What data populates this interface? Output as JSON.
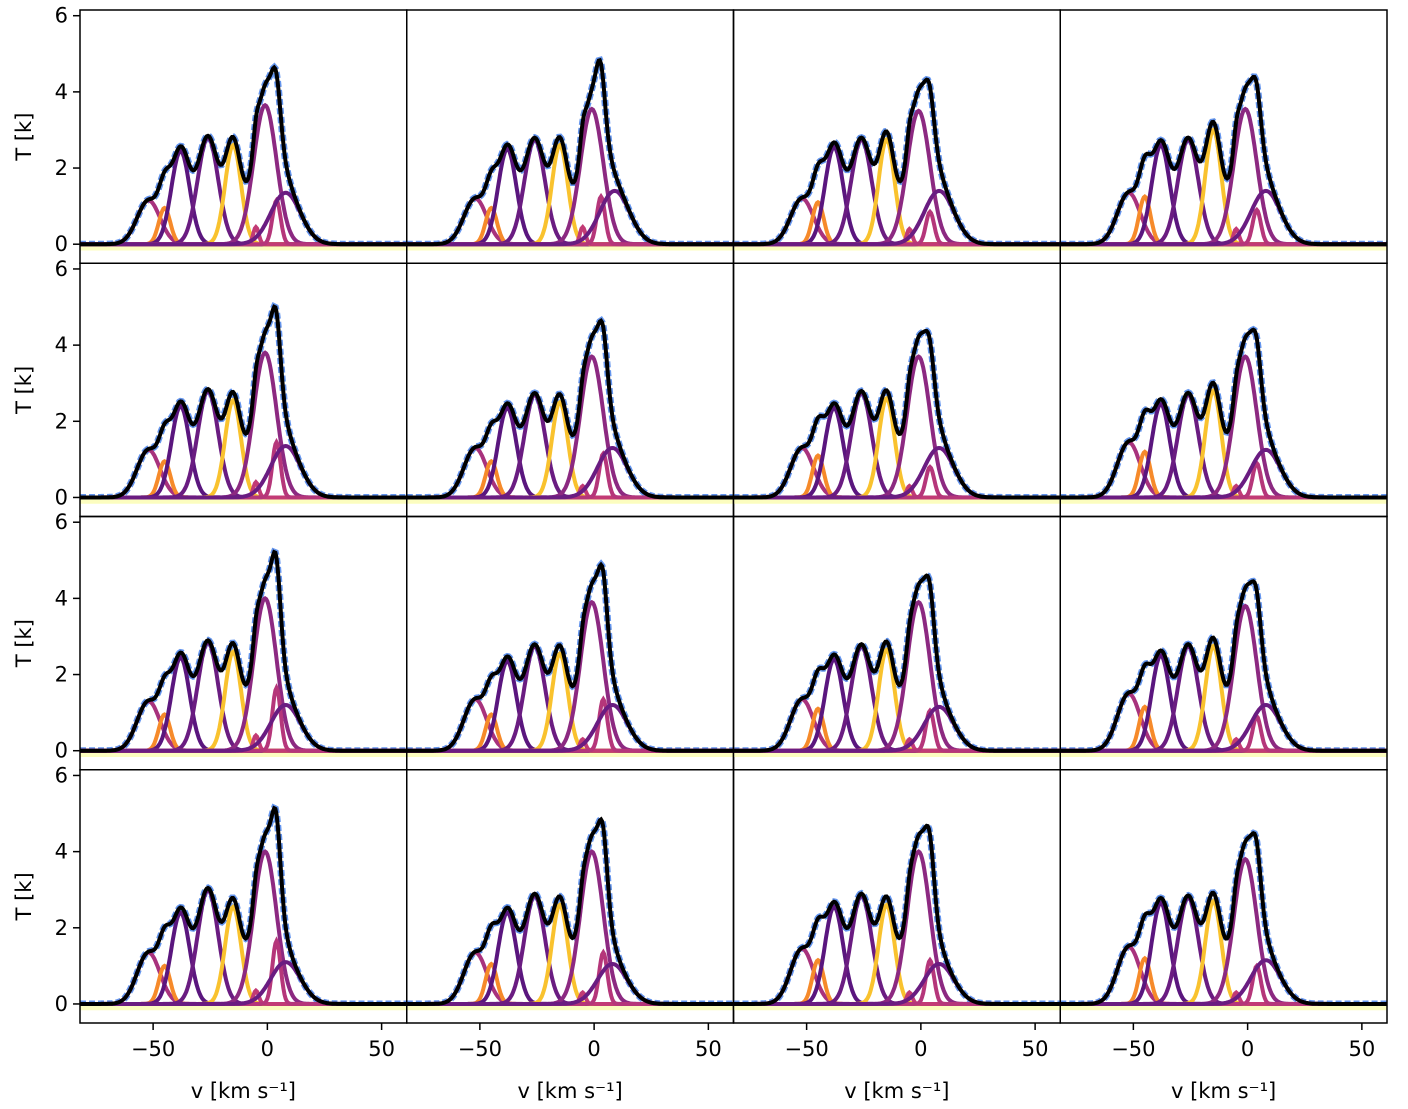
{
  "chart_data": [
    {
      "type": "gaussian-fit",
      "ylim": [
        -0.5,
        6.15
      ],
      "xlim": [
        -82,
        61
      ],
      "yticks": [
        0,
        2,
        4,
        6
      ],
      "y_label": "T [k]",
      "baseline": -0.1,
      "colors": [
        "#a8327d",
        "#f68a2a",
        "#5a167e",
        "#6a1c81",
        "#f9c22e",
        "#c23b75",
        "#8c2981",
        "#b5367a",
        "#6a1c81"
      ],
      "centers": [
        -52,
        -45,
        -38,
        -26,
        -15,
        -5,
        -1,
        4,
        8
      ],
      "widths": [
        5,
        2.5,
        4,
        4.5,
        3.5,
        1.2,
        5,
        1.8,
        6.5
      ],
      "amps": [
        1.15,
        0.95,
        2.45,
        2.8,
        2.6,
        0.45,
        3.65,
        1.15,
        1.35
      ]
    },
    {
      "type": "gaussian-fit",
      "ylim": [
        -0.5,
        6.15
      ],
      "xlim": [
        -82,
        61
      ],
      "baseline": -0.1,
      "colors": [
        "#a8327d",
        "#f68a2a",
        "#5a167e",
        "#6a1c81",
        "#f9c22e",
        "#c23b75",
        "#8c2981",
        "#b5367a",
        "#6a1c81"
      ],
      "centers": [
        -52,
        -45,
        -38,
        -26,
        -15,
        -5,
        -1,
        3,
        9
      ],
      "widths": [
        5,
        2.5,
        4,
        4.5,
        3.5,
        1.2,
        5,
        1.8,
        6.5
      ],
      "amps": [
        1.2,
        0.95,
        2.5,
        2.75,
        2.6,
        0.45,
        3.55,
        1.25,
        1.4
      ]
    },
    {
      "type": "gaussian-fit",
      "ylim": [
        -0.5,
        6.15
      ],
      "xlim": [
        -82,
        61
      ],
      "baseline": -0.1,
      "colors": [
        "#a8327d",
        "#f68a2a",
        "#5a167e",
        "#6a1c81",
        "#f9c22e",
        "#c23b75",
        "#8c2981",
        "#b5367a",
        "#6a1c81"
      ],
      "centers": [
        -52,
        -45,
        -38,
        -26,
        -15,
        -5,
        -1,
        4,
        8
      ],
      "widths": [
        5,
        2.5,
        4,
        4.5,
        3.5,
        1.2,
        5,
        1.8,
        6.5
      ],
      "amps": [
        1.2,
        1.1,
        2.55,
        2.75,
        2.75,
        0.4,
        3.5,
        0.85,
        1.4
      ]
    },
    {
      "type": "gaussian-fit",
      "ylim": [
        -0.5,
        6.15
      ],
      "xlim": [
        -82,
        61
      ],
      "baseline": -0.1,
      "colors": [
        "#a8327d",
        "#f68a2a",
        "#5a167e",
        "#6a1c81",
        "#f9c22e",
        "#c23b75",
        "#8c2981",
        "#b5367a",
        "#6a1c81"
      ],
      "centers": [
        -52,
        -45,
        -38,
        -26,
        -15,
        -5,
        -1,
        4,
        8
      ],
      "widths": [
        5,
        2.5,
        4,
        4.5,
        3.5,
        1.2,
        5,
        1.8,
        6.5
      ],
      "amps": [
        1.35,
        1.25,
        2.6,
        2.75,
        3.0,
        0.4,
        3.55,
        0.9,
        1.4
      ]
    },
    {
      "type": "gaussian-fit",
      "ylim": [
        -0.5,
        6.15
      ],
      "xlim": [
        -82,
        61
      ],
      "yticks": [
        0,
        2,
        4,
        6
      ],
      "y_label": "T [k]",
      "baseline": -0.1,
      "colors": [
        "#a8327d",
        "#f68a2a",
        "#5a167e",
        "#6a1c81",
        "#f9c22e",
        "#c23b75",
        "#8c2981",
        "#b5367a",
        "#6a1c81"
      ],
      "centers": [
        -52,
        -45,
        -38,
        -26,
        -15,
        -5,
        -1,
        4,
        8
      ],
      "widths": [
        5,
        2.5,
        4,
        4.5,
        3.5,
        1.2,
        5,
        1.8,
        6.5
      ],
      "amps": [
        1.25,
        0.95,
        2.4,
        2.8,
        2.55,
        0.4,
        3.8,
        1.45,
        1.35
      ]
    },
    {
      "type": "gaussian-fit",
      "ylim": [
        -0.5,
        6.15
      ],
      "xlim": [
        -82,
        61
      ],
      "baseline": -0.1,
      "colors": [
        "#a8327d",
        "#f68a2a",
        "#5a167e",
        "#6a1c81",
        "#f9c22e",
        "#c23b75",
        "#8c2981",
        "#b5367a",
        "#6a1c81"
      ],
      "centers": [
        -52,
        -45,
        -38,
        -26,
        -15,
        -5,
        -1,
        4,
        8
      ],
      "widths": [
        5,
        2.5,
        4,
        4.5,
        3.5,
        1.2,
        5,
        1.8,
        6.5
      ],
      "amps": [
        1.3,
        0.95,
        2.35,
        2.7,
        2.5,
        0.3,
        3.7,
        1.15,
        1.3
      ]
    },
    {
      "type": "gaussian-fit",
      "ylim": [
        -0.5,
        6.15
      ],
      "xlim": [
        -82,
        61
      ],
      "baseline": -0.1,
      "colors": [
        "#a8327d",
        "#f68a2a",
        "#5a167e",
        "#6a1c81",
        "#f9c22e",
        "#c23b75",
        "#8c2981",
        "#b5367a",
        "#6a1c81"
      ],
      "centers": [
        -52,
        -45,
        -38,
        -26,
        -15,
        -5,
        -1,
        4,
        8
      ],
      "widths": [
        5,
        2.5,
        4,
        4.5,
        3.5,
        1.2,
        5,
        1.8,
        6.5
      ],
      "amps": [
        1.3,
        1.1,
        2.35,
        2.75,
        2.6,
        0.3,
        3.7,
        0.8,
        1.3
      ]
    },
    {
      "type": "gaussian-fit",
      "ylim": [
        -0.5,
        6.15
      ],
      "xlim": [
        -82,
        61
      ],
      "baseline": -0.1,
      "colors": [
        "#a8327d",
        "#f68a2a",
        "#5a167e",
        "#6a1c81",
        "#f9c22e",
        "#c23b75",
        "#8c2981",
        "#b5367a",
        "#6a1c81"
      ],
      "centers": [
        -52,
        -45,
        -38,
        -26,
        -15,
        -5,
        -1,
        4,
        8
      ],
      "widths": [
        5,
        2.5,
        4,
        4.5,
        3.5,
        1.2,
        5,
        1.8,
        6.5
      ],
      "amps": [
        1.45,
        1.2,
        2.45,
        2.7,
        2.8,
        0.3,
        3.7,
        0.9,
        1.25
      ]
    },
    {
      "type": "gaussian-fit",
      "ylim": [
        -0.5,
        6.15
      ],
      "xlim": [
        -82,
        61
      ],
      "yticks": [
        0,
        2,
        4,
        6
      ],
      "y_label": "T [k]",
      "baseline": -0.1,
      "colors": [
        "#a8327d",
        "#f68a2a",
        "#5a167e",
        "#6a1c81",
        "#f9c22e",
        "#c23b75",
        "#8c2981",
        "#b5367a",
        "#6a1c81"
      ],
      "centers": [
        -52,
        -45,
        -38,
        -26,
        -15,
        -5,
        -1,
        4,
        8
      ],
      "widths": [
        5,
        2.5,
        4,
        4.5,
        3.5,
        1.2,
        5,
        1.8,
        6.5
      ],
      "amps": [
        1.3,
        0.95,
        2.45,
        2.85,
        2.6,
        0.4,
        4.0,
        1.65,
        1.2
      ]
    },
    {
      "type": "gaussian-fit",
      "ylim": [
        -0.5,
        6.15
      ],
      "xlim": [
        -82,
        61
      ],
      "baseline": -0.1,
      "colors": [
        "#a8327d",
        "#f68a2a",
        "#5a167e",
        "#6a1c81",
        "#f9c22e",
        "#c23b75",
        "#8c2981",
        "#b5367a",
        "#6a1c81"
      ],
      "centers": [
        -52,
        -45,
        -38,
        -26,
        -15,
        -5,
        -1,
        4,
        8
      ],
      "widths": [
        5,
        2.5,
        4,
        4.5,
        3.5,
        1.2,
        5,
        1.8,
        6.5
      ],
      "amps": [
        1.35,
        0.95,
        2.35,
        2.75,
        2.55,
        0.3,
        3.9,
        1.35,
        1.2
      ]
    },
    {
      "type": "gaussian-fit",
      "ylim": [
        -0.5,
        6.15
      ],
      "xlim": [
        -82,
        61
      ],
      "baseline": -0.1,
      "colors": [
        "#a8327d",
        "#f68a2a",
        "#5a167e",
        "#6a1c81",
        "#f9c22e",
        "#c23b75",
        "#8c2981",
        "#b5367a",
        "#6a1c81"
      ],
      "centers": [
        -52,
        -45,
        -38,
        -26,
        -15,
        -5,
        -1,
        4,
        8
      ],
      "widths": [
        5,
        2.5,
        4,
        4.5,
        3.5,
        1.2,
        5,
        1.8,
        6.5
      ],
      "amps": [
        1.35,
        1.1,
        2.4,
        2.75,
        2.65,
        0.3,
        3.9,
        1.05,
        1.15
      ]
    },
    {
      "type": "gaussian-fit",
      "ylim": [
        -0.5,
        6.15
      ],
      "xlim": [
        -82,
        61
      ],
      "baseline": -0.1,
      "colors": [
        "#a8327d",
        "#f68a2a",
        "#5a167e",
        "#6a1c81",
        "#f9c22e",
        "#c23b75",
        "#8c2981",
        "#b5367a",
        "#6a1c81"
      ],
      "centers": [
        -52,
        -45,
        -38,
        -26,
        -15,
        -5,
        -1,
        4,
        8
      ],
      "widths": [
        5,
        2.5,
        4,
        4.5,
        3.5,
        1.2,
        5,
        1.8,
        6.5
      ],
      "amps": [
        1.5,
        1.15,
        2.5,
        2.75,
        2.75,
        0.3,
        3.8,
        0.9,
        1.2
      ]
    },
    {
      "type": "gaussian-fit",
      "ylim": [
        -0.5,
        6.15
      ],
      "xlim": [
        -82,
        61
      ],
      "yticks": [
        0,
        2,
        4,
        6
      ],
      "y_label": "T [k]",
      "xticks": [
        {
          "value": -50,
          "label": "−50"
        },
        0,
        50
      ],
      "x_label": "v [km s⁻¹]",
      "baseline": -0.1,
      "colors": [
        "#a8327d",
        "#f68a2a",
        "#5a167e",
        "#6a1c81",
        "#f9c22e",
        "#c23b75",
        "#8c2981",
        "#b5367a",
        "#6a1c81"
      ],
      "centers": [
        -52,
        -45,
        -38,
        -26,
        -15,
        -5,
        -1,
        4,
        8
      ],
      "widths": [
        5,
        2.5,
        4,
        4.5,
        3.5,
        1.2,
        5,
        1.8,
        6.5
      ],
      "amps": [
        1.35,
        1.0,
        2.4,
        3.0,
        2.55,
        0.35,
        4.0,
        1.65,
        1.1
      ]
    },
    {
      "type": "gaussian-fit",
      "ylim": [
        -0.5,
        6.15
      ],
      "xlim": [
        -82,
        61
      ],
      "xticks": [
        {
          "value": -50,
          "label": "−50"
        },
        0,
        50
      ],
      "x_label": "v [km s⁻¹]",
      "baseline": -0.1,
      "colors": [
        "#a8327d",
        "#f68a2a",
        "#5a167e",
        "#6a1c81",
        "#f9c22e",
        "#c23b75",
        "#8c2981",
        "#b5367a",
        "#6a1c81"
      ],
      "centers": [
        -52,
        -45,
        -38,
        -26,
        -15,
        -5,
        -1,
        4,
        8
      ],
      "widths": [
        5,
        2.5,
        4,
        4.5,
        3.5,
        1.2,
        5,
        1.8,
        6.5
      ],
      "amps": [
        1.35,
        1.05,
        2.4,
        2.85,
        2.6,
        0.3,
        4.0,
        1.35,
        1.05
      ]
    },
    {
      "type": "gaussian-fit",
      "ylim": [
        -0.5,
        6.15
      ],
      "xlim": [
        -82,
        61
      ],
      "xticks": [
        {
          "value": -50,
          "label": "−50"
        },
        0,
        50
      ],
      "x_label": "v [km s⁻¹]",
      "baseline": -0.1,
      "colors": [
        "#a8327d",
        "#f68a2a",
        "#5a167e",
        "#6a1c81",
        "#f9c22e",
        "#c23b75",
        "#8c2981",
        "#b5367a",
        "#6a1c81"
      ],
      "centers": [
        -52,
        -45,
        -38,
        -26,
        -15,
        -5,
        -1,
        4,
        8
      ],
      "widths": [
        5,
        2.5,
        4,
        4.5,
        3.5,
        1.2,
        5,
        1.8,
        6.5
      ],
      "amps": [
        1.45,
        1.15,
        2.55,
        2.85,
        2.6,
        0.3,
        4.0,
        1.15,
        1.05
      ]
    },
    {
      "type": "gaussian-fit",
      "ylim": [
        -0.5,
        6.15
      ],
      "xlim": [
        -82,
        61
      ],
      "xticks": [
        {
          "value": -50,
          "label": "−50"
        },
        0,
        50
      ],
      "x_label": "v [km s⁻¹]",
      "baseline": -0.1,
      "colors": [
        "#a8327d",
        "#f68a2a",
        "#5a167e",
        "#6a1c81",
        "#f9c22e",
        "#c23b75",
        "#8c2981",
        "#b5367a",
        "#6a1c81"
      ],
      "centers": [
        -52,
        -45,
        -38,
        -26,
        -15,
        -5,
        -1,
        4,
        8
      ],
      "widths": [
        5,
        2.5,
        4,
        4.5,
        3.5,
        1.2,
        5,
        1.8,
        6.5
      ],
      "amps": [
        1.5,
        1.2,
        2.65,
        2.8,
        2.7,
        0.3,
        3.8,
        1.0,
        1.15
      ]
    }
  ]
}
